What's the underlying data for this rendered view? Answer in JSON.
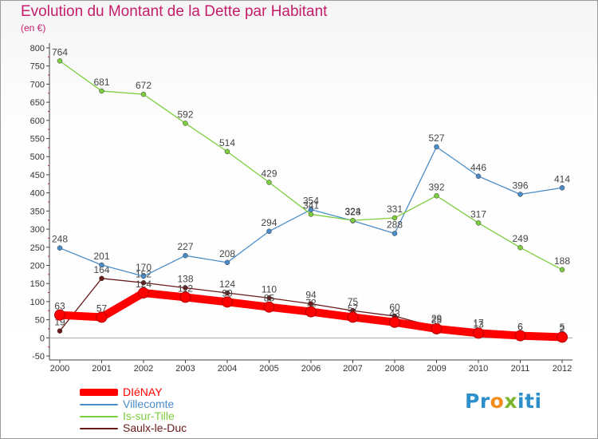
{
  "title": "Evolution du Montant de la Dette par Habitant",
  "subtitle": "(en €)",
  "logo": {
    "p1": "Pr",
    "p2": "o",
    "p3": "x",
    "p4": "iti"
  },
  "chart_data": {
    "type": "line",
    "title": "Evolution du Montant de la Dette par Habitant",
    "ylabel": "(en €)",
    "xlabel": "",
    "ylim": [
      -50,
      800
    ],
    "y_ticks": [
      "-50",
      "0",
      "50",
      "100",
      "150",
      "200",
      "250",
      "300",
      "350",
      "400",
      "450",
      "500",
      "550",
      "600",
      "650",
      "700",
      "750",
      "800"
    ],
    "categories": [
      "2000",
      "2001",
      "2002",
      "2003",
      "2004",
      "2005",
      "2006",
      "2007",
      "2008",
      "2009",
      "2010",
      "2011",
      "2012"
    ],
    "grid": false,
    "legend_position": "bottom-left",
    "series": [
      {
        "name": "Saulx-le-Duc",
        "color": "#6b1a1a",
        "values": [
          19,
          164,
          152,
          138,
          124,
          110,
          94,
          75,
          60,
          29,
          17,
          6,
          5
        ]
      },
      {
        "name": "Villecomte",
        "color": "#4a8cc8",
        "values": [
          248,
          201,
          170,
          227,
          208,
          294,
          354,
          323,
          288,
          527,
          446,
          396,
          414
        ]
      },
      {
        "name": "Is-sur-Tille",
        "color": "#7ccd3f",
        "values": [
          764,
          681,
          672,
          592,
          514,
          429,
          341,
          324,
          331,
          392,
          317,
          249,
          188
        ]
      },
      {
        "name": "DIéNAY",
        "color": "#ff0000",
        "values": [
          63,
          57,
          124,
          112,
          99,
          85,
          72,
          57,
          43,
          25,
          13,
          6,
          2
        ]
      }
    ],
    "legend_order": [
      "DIéNAY",
      "Villecomte",
      "Is-sur-Tille",
      "Saulx-le-Duc"
    ]
  }
}
